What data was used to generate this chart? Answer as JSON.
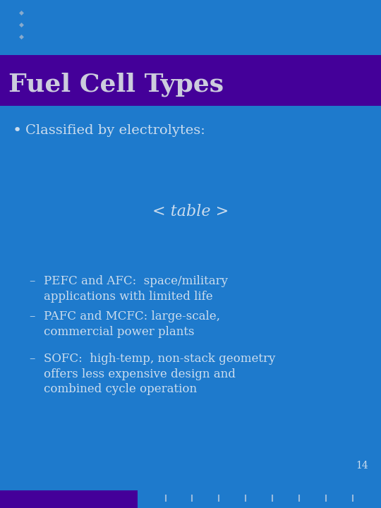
{
  "bg_color": "#1E7ACC",
  "title_bg_color": "#440099",
  "title_text": "Fuel Cell Types",
  "title_color": "#CCCCDD",
  "title_fontsize": 26,
  "bullet_color": "#CCDDEE",
  "bullet_fontsize": 14,
  "sub_fontsize": 12,
  "page_num": "14",
  "top_dots_color": "#88AACC",
  "bottom_dots_color": "#99BBDD",
  "bottom_bar_color": "#440099",
  "bullet_point": "Classified by electrolytes:",
  "table_text": "< table >",
  "table_fontsize": 16,
  "dash_items": [
    "PEFC and AFC:  space/military\napplications with limited life",
    "PAFC and MCFC: large-scale,\ncommercial power plants",
    "SOFC:  high-temp, non-stack geometry\noffers less expensive design and\ncombined cycle operation"
  ]
}
